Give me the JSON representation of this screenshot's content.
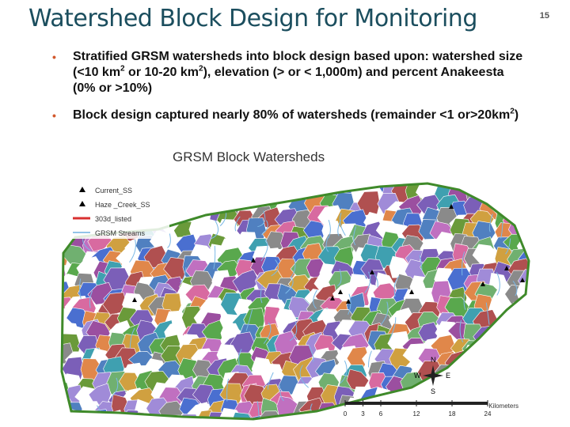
{
  "header": {
    "title": "Watershed Block Design for Monitoring",
    "page_number": "15"
  },
  "bullets": [
    {
      "parts": [
        {
          "text": "Stratified GRSM watersheds into block design based upon: watershed size (<10 km"
        },
        {
          "text": "2",
          "sup": true
        },
        {
          "text": " or 10-20 km"
        },
        {
          "text": "2",
          "sup": true
        },
        {
          "text": "), elevation (> or < 1,000m) and percent Anakeesta (0% or >10%)"
        }
      ]
    },
    {
      "parts": [
        {
          "text": "Block design captured nearly 80% of watersheds (remainder <1 or>20km"
        },
        {
          "text": "2",
          "sup": true
        },
        {
          "text": ")"
        }
      ]
    }
  ],
  "map": {
    "title": "GRSM Block  Watersheds",
    "legend": [
      "Current_SS",
      "Haze _Creek_SS",
      "303d_listed",
      "GRSM Streams"
    ],
    "compass": {
      "n": "N",
      "s": "S",
      "e": "E",
      "w": "W"
    },
    "scale_bar": {
      "unit": "Kilometers",
      "ticks": [
        0,
        3,
        6,
        12,
        18,
        24
      ]
    }
  }
}
